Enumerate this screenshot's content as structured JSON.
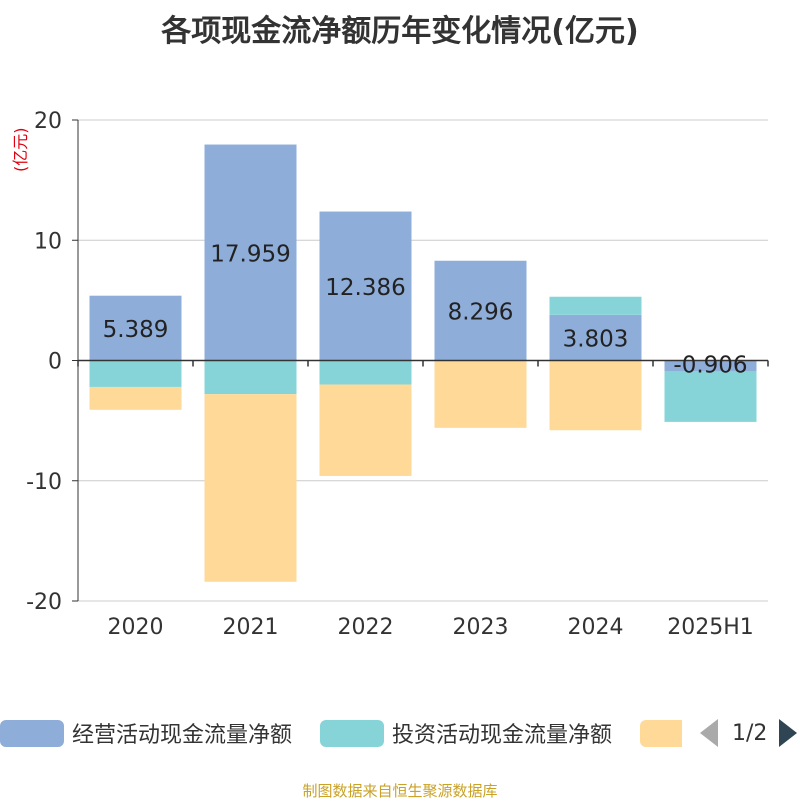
{
  "title": "各项现金流净额历年变化情况(亿元)",
  "unit_label": "(亿元)",
  "source": "制图数据来自恒生聚源数据库",
  "pager": {
    "text": "1/2"
  },
  "chart_data": {
    "type": "bar",
    "stacked": true,
    "categories": [
      "2020",
      "2021",
      "2022",
      "2023",
      "2024",
      "2025H1"
    ],
    "ylim": [
      -20,
      20
    ],
    "yticks": [
      20,
      10,
      0,
      -10,
      -20
    ],
    "grid": true,
    "legend_position": "bottom",
    "series": [
      {
        "name": "经营活动现金流量净额",
        "color": "#8eadd9",
        "values": [
          5.389,
          17.959,
          12.386,
          8.296,
          3.803,
          -0.906
        ],
        "labels": true
      },
      {
        "name": "投资活动现金流量净额",
        "color": "#86d4d8",
        "values": [
          -2.2,
          -2.8,
          -2.0,
          0,
          1.5,
          -4.2
        ],
        "labels": false
      },
      {
        "name": "",
        "color": "#ffd998",
        "values": [
          -1.9,
          -15.6,
          -7.6,
          -5.6,
          -5.8,
          0
        ],
        "labels": false
      }
    ]
  }
}
